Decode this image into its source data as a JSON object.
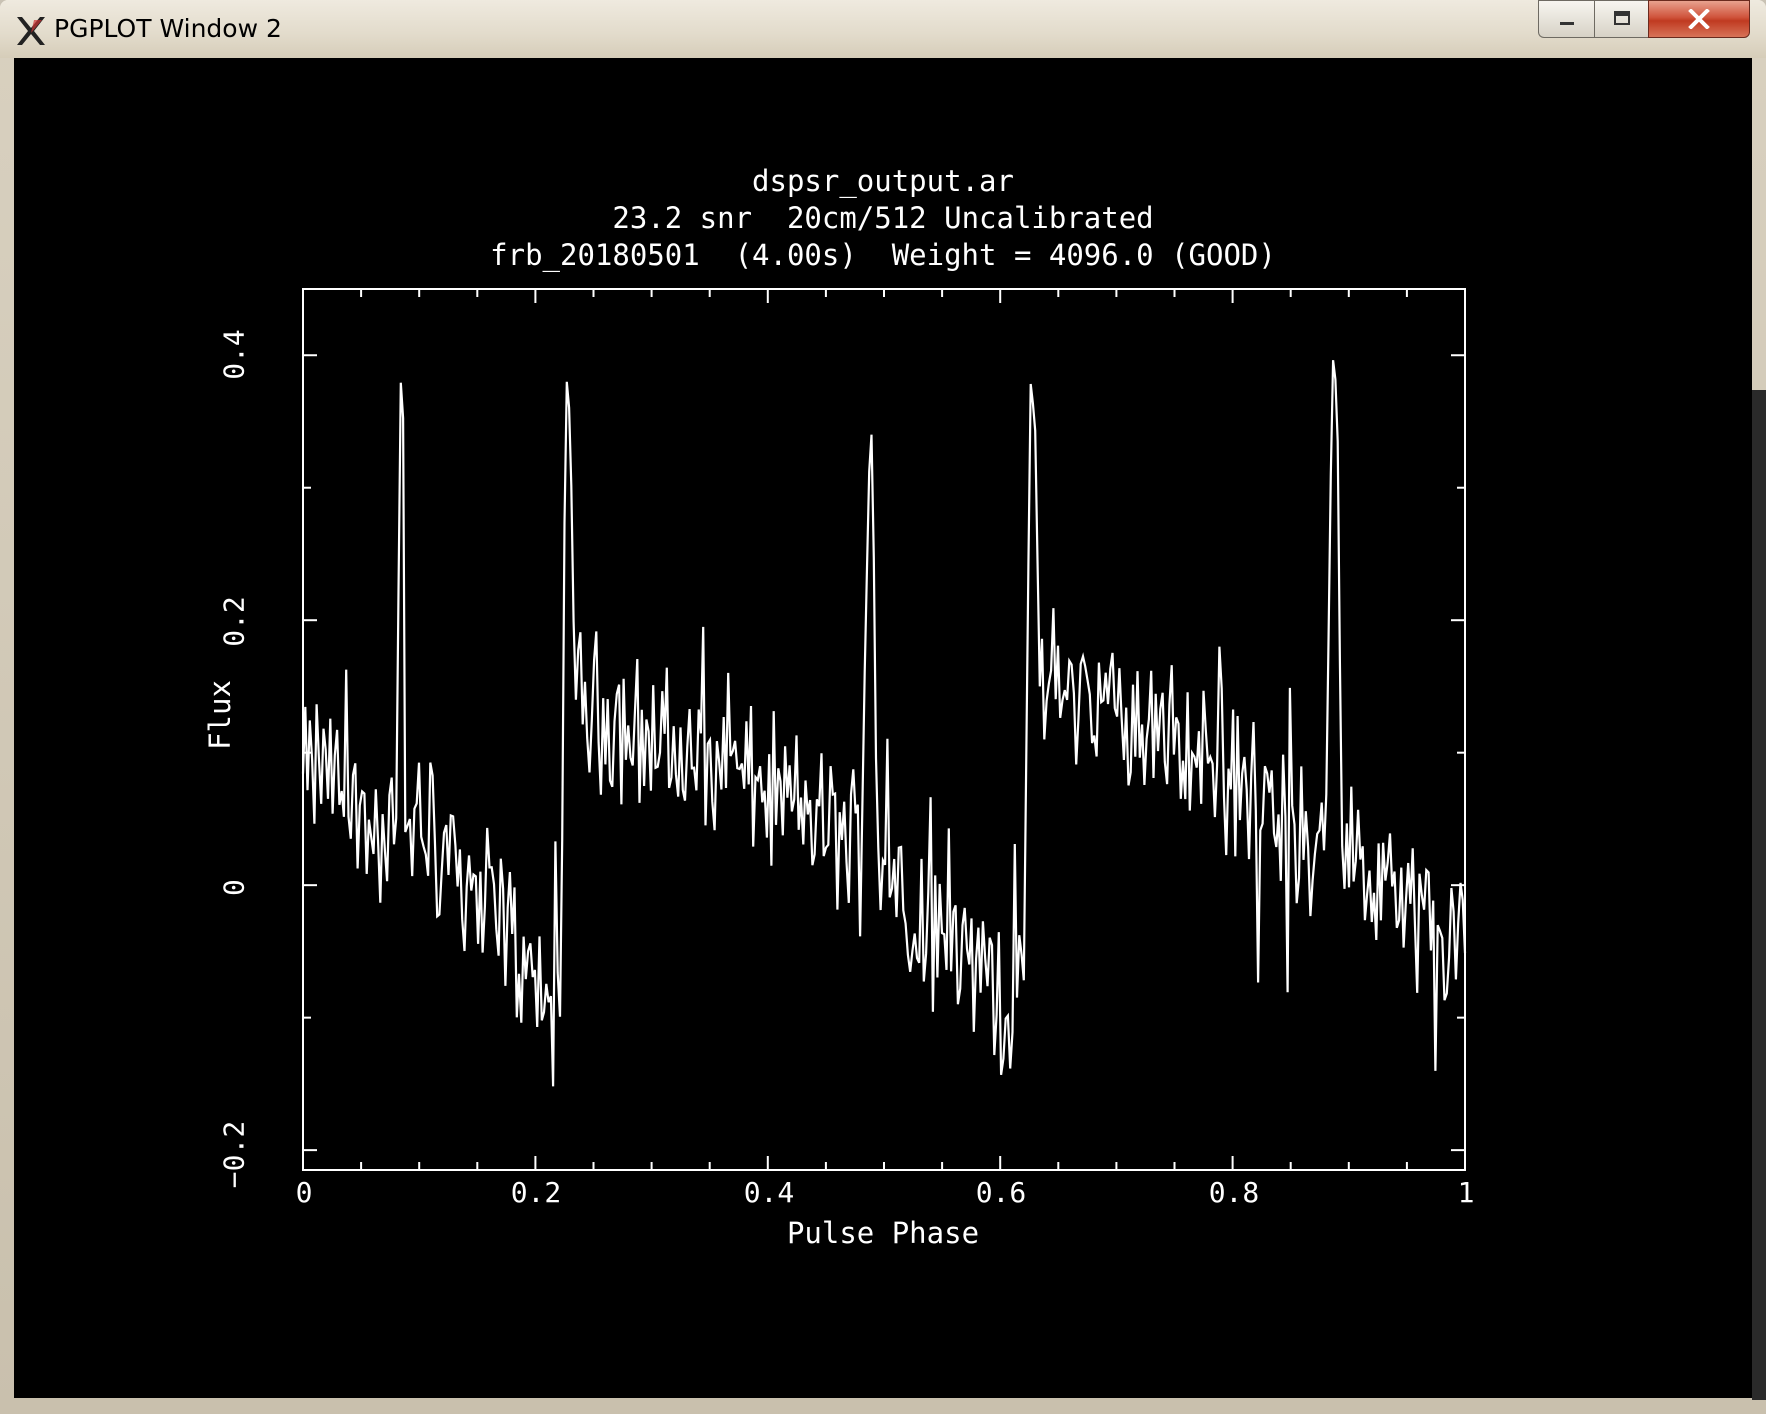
{
  "window": {
    "title": "PGPLOT Window 2",
    "icon": "x11-icon",
    "controls": [
      "minimize-icon",
      "maximize-icon",
      "close-icon"
    ]
  },
  "colors": {
    "plot_background": "#000000",
    "plot_foreground": "#ffffff",
    "close_button": "#c9452c"
  },
  "chart_data": {
    "type": "line",
    "title": "dspsr_output.ar",
    "subtitle": "23.2 snr  20cm/512 Uncalibrated",
    "info_line": "frb_20180501  (4.00s)  Weight = 4096.0 (GOOD)",
    "xlabel": "Pulse Phase",
    "ylabel": "Flux",
    "xlim": [
      0,
      1
    ],
    "ylim": [
      -0.215,
      0.45
    ],
    "xticks": [
      0,
      0.2,
      0.4,
      0.6,
      0.8,
      1
    ],
    "xtick_labels": [
      "0",
      "0.2",
      "0.4",
      "0.6",
      "0.8",
      "1"
    ],
    "yticks": [
      -0.2,
      0,
      0.2,
      0.4
    ],
    "ytick_labels": [
      "−0.2",
      "0",
      "0.2",
      "0.4"
    ],
    "grid": false,
    "series": [
      {
        "x": [
          0.0,
          0.02,
          0.04,
          0.06,
          0.08,
          0.084,
          0.086,
          0.088,
          0.092,
          0.11,
          0.13,
          0.15,
          0.17,
          0.19,
          0.21,
          0.222,
          0.226,
          0.23,
          0.234,
          0.24,
          0.26,
          0.28,
          0.3,
          0.32,
          0.34,
          0.36,
          0.38,
          0.4,
          0.42,
          0.44,
          0.46,
          0.48,
          0.488,
          0.49,
          0.494,
          0.5,
          0.52,
          0.54,
          0.56,
          0.58,
          0.6,
          0.62,
          0.626,
          0.63,
          0.634,
          0.64,
          0.66,
          0.68,
          0.7,
          0.72,
          0.74,
          0.76,
          0.78,
          0.8,
          0.82,
          0.84,
          0.86,
          0.88,
          0.886,
          0.89,
          0.894,
          0.9,
          0.92,
          0.94,
          0.96,
          0.98,
          1.0
        ],
        "y": [
          0.08,
          0.09,
          0.06,
          0.04,
          0.03,
          0.38,
          0.37,
          0.04,
          0.05,
          0.04,
          0.02,
          0.0,
          -0.02,
          -0.06,
          -0.09,
          -0.1,
          0.39,
          0.35,
          0.14,
          0.14,
          0.13,
          0.12,
          0.11,
          0.1,
          0.09,
          0.08,
          0.08,
          0.07,
          0.06,
          0.05,
          0.04,
          0.03,
          0.34,
          0.34,
          0.03,
          0.02,
          -0.01,
          -0.03,
          -0.05,
          -0.06,
          -0.08,
          -0.1,
          0.38,
          0.35,
          0.15,
          0.15,
          0.15,
          0.14,
          0.13,
          0.12,
          0.11,
          0.1,
          0.09,
          0.08,
          0.07,
          0.05,
          0.04,
          0.03,
          0.4,
          0.37,
          0.03,
          0.02,
          0.0,
          -0.01,
          -0.02,
          -0.04,
          -0.05
        ]
      }
    ]
  }
}
